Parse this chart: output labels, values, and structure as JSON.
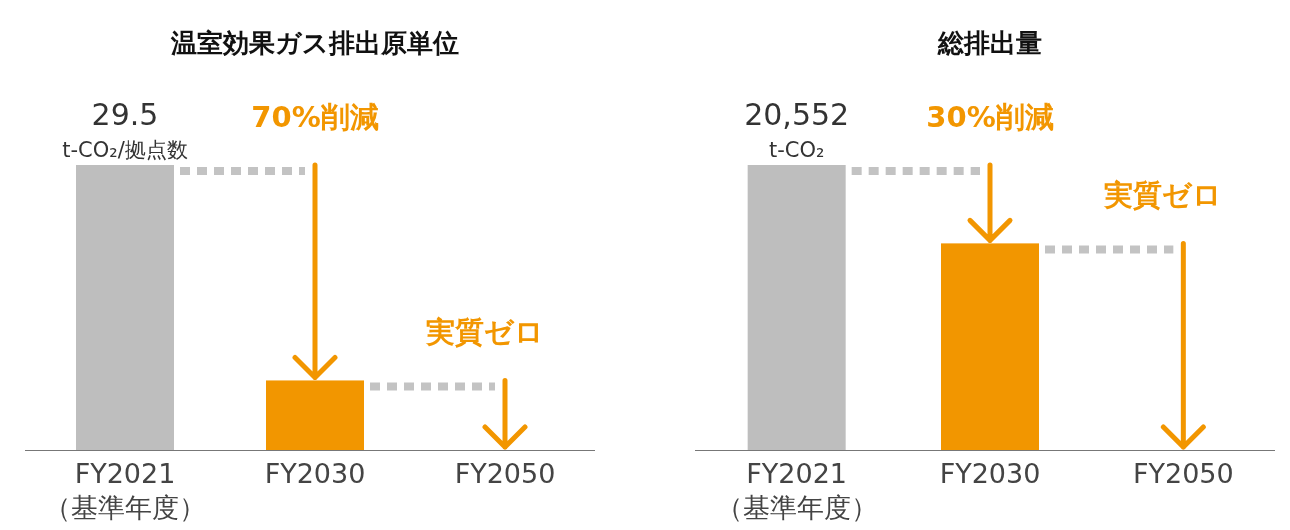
{
  "chart_data": [
    {
      "type": "bar",
      "title": "温室効果ガス排出原単位",
      "categories": [
        "FY2021\n（基準年度）",
        "FY2030",
        "FY2050"
      ],
      "values": [
        29.5,
        7.2,
        0
      ],
      "colors": [
        "#bebebe",
        "#f29600",
        "#f29600"
      ],
      "value_labels": [
        "29.5",
        null,
        null
      ],
      "annotations": [
        "t-CO₂/拠点数",
        "70%削減",
        "実質ゼロ"
      ]
    },
    {
      "type": "bar",
      "title": "総排出量",
      "categories": [
        "FY2021\n（基準年度）",
        "FY2030",
        "FY2050"
      ],
      "values": [
        20552,
        14900,
        0
      ],
      "colors": [
        "#bebebe",
        "#f29600",
        "#f29600"
      ],
      "value_labels": [
        "20,552",
        null,
        null
      ],
      "annotations": [
        "t-CO₂",
        "30%削減",
        "実質ゼロ"
      ]
    }
  ]
}
